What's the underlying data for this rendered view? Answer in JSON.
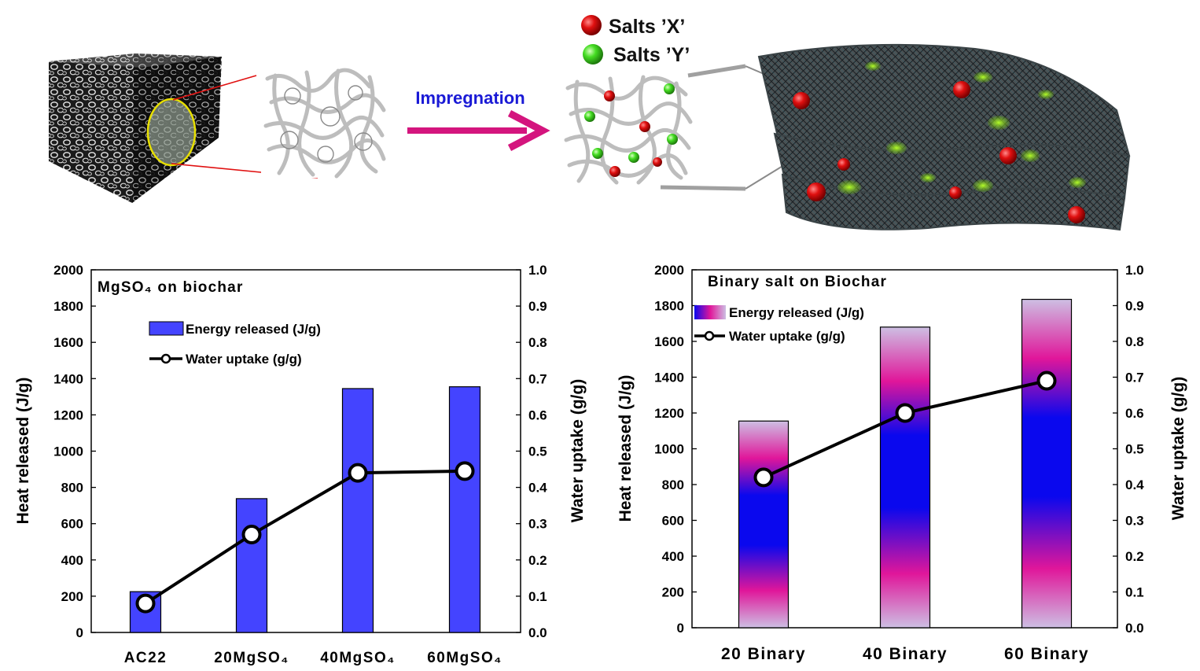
{
  "schematic": {
    "process_label": "Impregnation",
    "salt_x_label": "Salts ’X’",
    "salt_y_label": "Salts ’Y’",
    "colors": {
      "salt_x": "#e01010",
      "salt_y": "#44dd22",
      "arrow": "#d4157e",
      "process_text": "#1a1ad6",
      "highlight_circle": "#e8e000"
    }
  },
  "chart_data": [
    {
      "type": "bar",
      "title": "MgSO₄ on biochar",
      "categories": [
        "AC22",
        "20MgSO₄",
        "40MgSO₄",
        "60MgSO₄"
      ],
      "series": [
        {
          "name": "Energy released (J/g)",
          "type": "bar",
          "axis": "left",
          "values": [
            225,
            738,
            1345,
            1355
          ]
        },
        {
          "name": "Water uptake (g/g)",
          "type": "line",
          "axis": "right",
          "values": [
            0.08,
            0.27,
            0.44,
            0.445
          ]
        }
      ],
      "ylabel": "Heat released (J/g)",
      "y2label": "Water uptake (g/g)",
      "ylim": [
        0,
        2000
      ],
      "y2lim": [
        0,
        1.0
      ],
      "yticks": [
        "0",
        "200",
        "400",
        "600",
        "800",
        "1000",
        "1200",
        "1400",
        "1600",
        "1800",
        "2000"
      ],
      "y2ticks": [
        "0.0",
        "0.1",
        "0.2",
        "0.3",
        "0.4",
        "0.5",
        "0.6",
        "0.7",
        "0.8",
        "0.9",
        "1.0"
      ],
      "grid": false,
      "legend": "upper-left",
      "bar_color": "#4444ff"
    },
    {
      "type": "bar",
      "title": "Binary salt on Biochar",
      "categories": [
        "20 Binary",
        "40 Binary",
        "60 Binary"
      ],
      "series": [
        {
          "name": "Energy released (J/g)",
          "type": "bar",
          "axis": "left",
          "values": [
            1155,
            1680,
            1835
          ]
        },
        {
          "name": "Water uptake (g/g)",
          "type": "line",
          "axis": "right",
          "values": [
            0.42,
            0.6,
            0.69
          ]
        }
      ],
      "ylabel": "Heat released (J/g)",
      "y2label": "Water uptake (g/g)",
      "ylim": [
        0,
        2000
      ],
      "y2lim": [
        0,
        1.0
      ],
      "yticks": [
        "0",
        "200",
        "400",
        "600",
        "800",
        "1000",
        "1200",
        "1400",
        "1600",
        "1800",
        "2000"
      ],
      "y2ticks": [
        "0.0",
        "0.1",
        "0.2",
        "0.3",
        "0.4",
        "0.5",
        "0.6",
        "0.7",
        "0.8",
        "0.9",
        "1.0"
      ],
      "grid": false,
      "legend": "upper-left",
      "bar_colors": [
        "#cdbfe3",
        "#e0169a",
        "#0a08ee"
      ]
    }
  ]
}
